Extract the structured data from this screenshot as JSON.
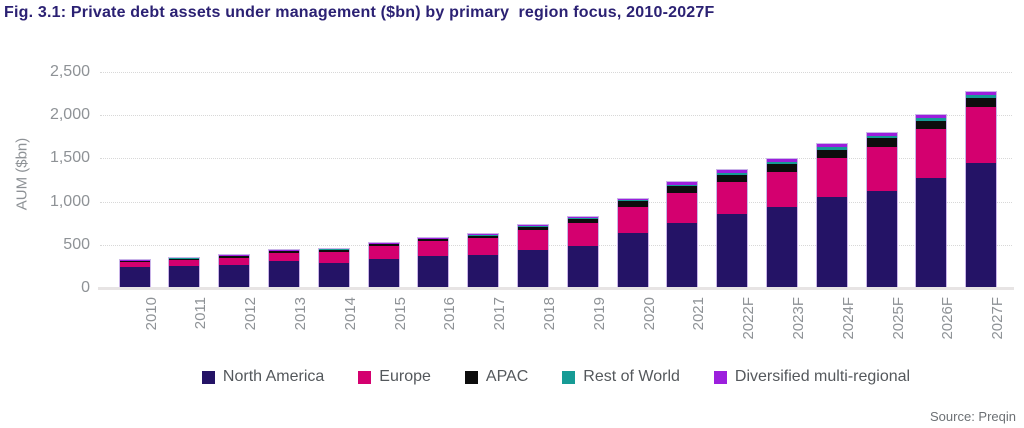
{
  "title": "Fig. 3.1: Private debt assets under management ($bn) by primary  region focus, 2010-2027F",
  "source": "Source: Preqin",
  "colors": {
    "title_text": "#2b2173",
    "axis_text": "#8e9296",
    "legend_text": "#54585c",
    "north_america": "#241366",
    "europe": "#d4006f",
    "apac": "#0d0d0d",
    "rest_of_world": "#169b95",
    "diversified": "#9c1fdd",
    "bar_border": "#c9b4e8"
  },
  "chart_data": {
    "type": "bar",
    "stacked": true,
    "title": "Fig. 3.1: Private debt assets under management ($bn) by primary  region focus, 2010-2027F",
    "xlabel": "",
    "ylabel": "AUM ($bn)",
    "ylim": [
      0,
      2500
    ],
    "yticks": [
      0,
      500,
      1000,
      1500,
      2000,
      2500
    ],
    "ytick_labels": [
      "0",
      "500",
      "1,000",
      "1,500",
      "2,000",
      "2,500"
    ],
    "grid": "horizontal-dotted",
    "legend_position": "bottom",
    "categories": [
      "2010",
      "2011",
      "2012",
      "2013",
      "2014",
      "2015",
      "2016",
      "2017",
      "2018",
      "2019",
      "2020",
      "2021",
      "2022F",
      "2023F",
      "2024F",
      "2025F",
      "2026F",
      "2027F"
    ],
    "series": [
      {
        "name": "North America",
        "color": "#241366",
        "values": [
          235,
          245,
          255,
          295,
          280,
          320,
          360,
          370,
          425,
          470,
          620,
          740,
          845,
          925,
          1040,
          1110,
          1260,
          1440
        ]
      },
      {
        "name": "Europe",
        "color": "#d4006f",
        "values": [
          55,
          70,
          85,
          100,
          125,
          155,
          170,
          195,
          230,
          275,
          310,
          350,
          370,
          410,
          450,
          510,
          570,
          640
        ]
      },
      {
        "name": "APAC",
        "color": "#0d0d0d",
        "values": [
          10,
          12,
          15,
          20,
          25,
          22,
          22,
          30,
          40,
          45,
          60,
          75,
          85,
          90,
          100,
          105,
          95,
          110
        ]
      },
      {
        "name": "Rest of World",
        "color": "#169b95",
        "values": [
          3,
          3,
          4,
          5,
          5,
          5,
          5,
          6,
          8,
          10,
          12,
          15,
          20,
          20,
          25,
          20,
          30,
          35
        ]
      },
      {
        "name": "Diversified multi-regional",
        "color": "#9c1fdd",
        "values": [
          7,
          10,
          11,
          10,
          10,
          8,
          8,
          9,
          12,
          15,
          18,
          30,
          40,
          40,
          40,
          35,
          40,
          35
        ]
      }
    ],
    "totals": [
      310,
      340,
      370,
      430,
      445,
      510,
      565,
      610,
      715,
      815,
      1020,
      1210,
      1360,
      1485,
      1655,
      1780,
      1995,
      2260
    ]
  }
}
